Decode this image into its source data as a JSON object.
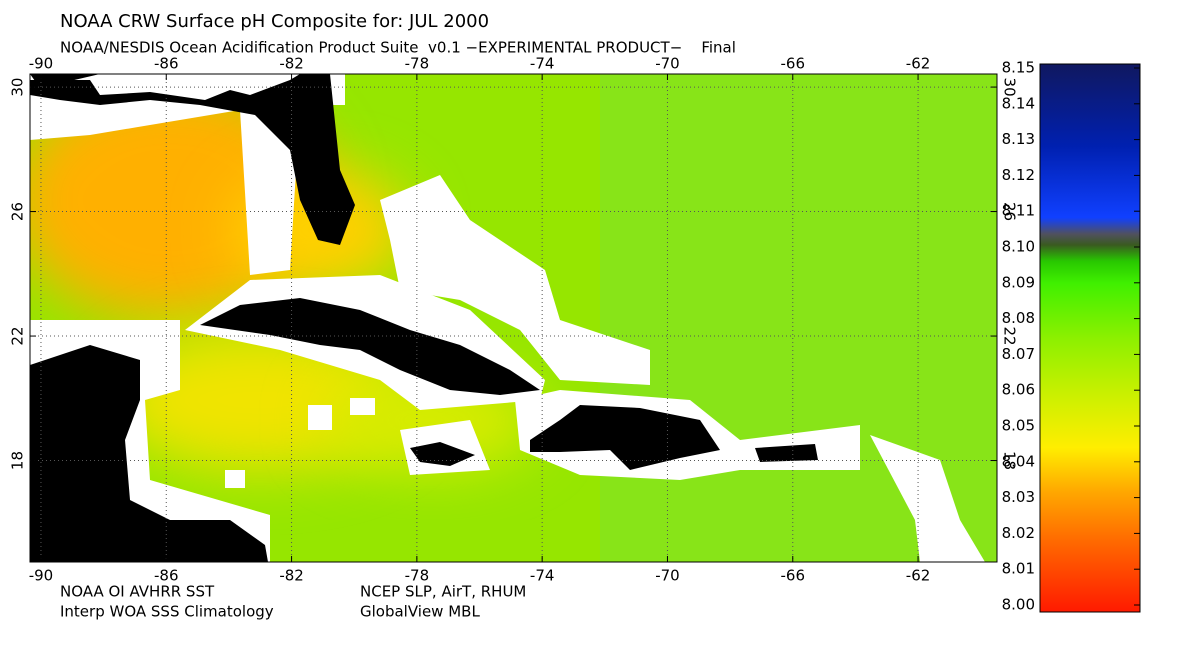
{
  "header": {
    "title": "NOAA CRW Surface pH Composite for: JUL 2000",
    "subtitle": "NOAA/NESDIS Ocean Acidification Product Suite  v0.1 −EXPERIMENTAL PRODUCT−    Final"
  },
  "map": {
    "lon_range": [
      -90.35,
      -59.48
    ],
    "lat_range": [
      14.74,
      30.42
    ],
    "lon_ticks": [
      -90,
      -86,
      -82,
      -78,
      -74,
      -70,
      -66,
      -62
    ],
    "lat_ticks": [
      30,
      26,
      22,
      18
    ]
  },
  "colorbar": {
    "range": [
      8.0,
      8.15
    ],
    "ticks": [
      {
        "value": 8.0,
        "label": "8.00"
      },
      8.01,
      8.02,
      8.03,
      8.04,
      8.05,
      8.06,
      8.07,
      8.08,
      8.09,
      {
        "value": 8.1,
        "label": "8.10"
      },
      8.11,
      8.12,
      8.13,
      8.14,
      8.15
    ]
  },
  "footer": {
    "left": [
      "NOAA OI AVHRR SST",
      "Interp WOA SSS Climatology"
    ],
    "right": [
      "NCEP SLP, AirT, RHUM",
      "GlobalView MBL"
    ]
  }
}
